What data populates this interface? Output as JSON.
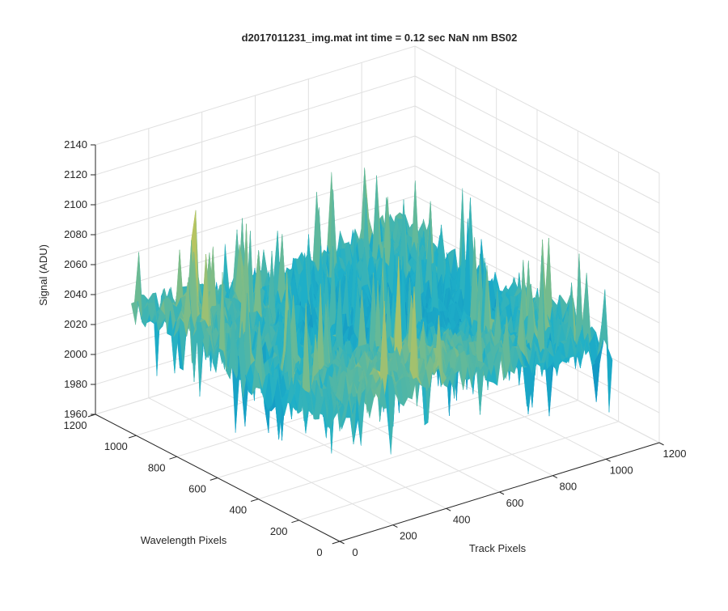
{
  "chart_data": {
    "type": "surface",
    "title": "d2017011231_img.mat int time = 0.12 sec  NaN nm BS02",
    "xlabel": "Track Pixels",
    "ylabel": "Wavelength Pixels",
    "zlabel": "Signal (ADU)",
    "xlim": [
      0,
      1200
    ],
    "ylim": [
      0,
      1200
    ],
    "zlim": [
      1960,
      2140
    ],
    "xticks": [
      0,
      200,
      400,
      600,
      800,
      1000,
      1200
    ],
    "yticks": [
      0,
      200,
      400,
      600,
      800,
      1000,
      1200
    ],
    "zticks": [
      1960,
      1980,
      2000,
      2020,
      2040,
      2060,
      2080,
      2100,
      2120,
      2140
    ],
    "grid": true,
    "colormap": "parula",
    "data_extent": {
      "x": [
        0,
        1024
      ],
      "y": [
        0,
        1024
      ]
    },
    "signal_summary": {
      "typical_min": 1990,
      "typical_max": 2080,
      "mean": 2035,
      "peak": 2128
    },
    "colors": {
      "low": "#0072bd",
      "mid": "#1fb0c8",
      "high": "#d8c84a",
      "axis": "#262626",
      "grid": "#e0e0e0"
    }
  }
}
